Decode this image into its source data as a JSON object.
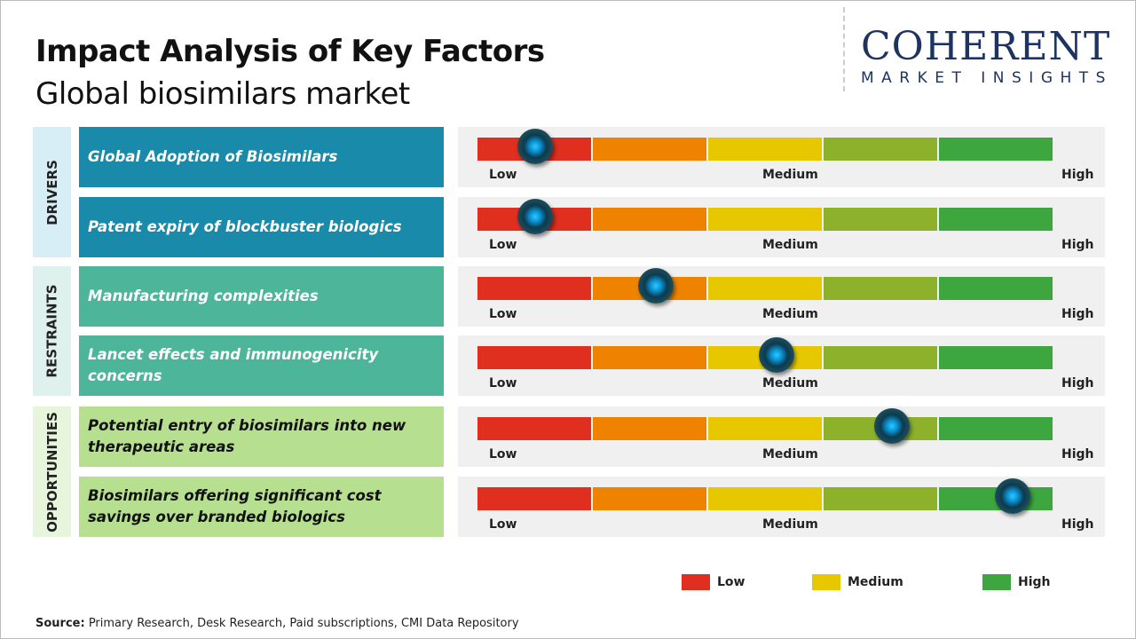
{
  "title": "Impact Analysis of Key Factors",
  "subtitle": "Global biosimilars market",
  "logo": {
    "line1": "COHERENT",
    "line2": "MARKET INSIGHTS"
  },
  "colors": {
    "low": "#e02e1f",
    "low_med": "#ef8300",
    "medium": "#e7c800",
    "med_high": "#8db12b",
    "high": "#3ea63f"
  },
  "chart_data": {
    "type": "gauge",
    "scale_labels": [
      "Low",
      "Medium",
      "High"
    ],
    "categories": [
      {
        "name": "DRIVERS",
        "bg": "#d8eef7",
        "item_color": "#1a8aab",
        "text_color": "#ffffff"
      },
      {
        "name": "RESTRAINTS",
        "bg": "#dff1ec",
        "item_color": "#4db59a",
        "text_color": "#ffffff"
      },
      {
        "name": "OPPORTUNITIES",
        "bg": "#e7f5dc",
        "item_color": "#b6e08f",
        "text_color": "#111111"
      }
    ],
    "factors": [
      {
        "category": 0,
        "label": "Global Adoption of Biosimilars",
        "impact": 0.1
      },
      {
        "category": 0,
        "label": "Patent expiry of blockbuster biologics",
        "impact": 0.1
      },
      {
        "category": 1,
        "label": "Manufacturing  complexities",
        "impact": 0.31
      },
      {
        "category": 1,
        "label": "Lancet effects and immunogenicity  concerns",
        "impact": 0.52
      },
      {
        "category": 2,
        "label": "Potential entry of biosimilars into new therapeutic  areas",
        "impact": 0.72
      },
      {
        "category": 2,
        "label": "Biosimilars offering significant cost savings over branded biologics",
        "impact": 0.93
      }
    ],
    "legend": [
      {
        "label": "Low",
        "color": "#e02e1f"
      },
      {
        "label": "Medium",
        "color": "#e7c800"
      },
      {
        "label": "High",
        "color": "#3ea63f"
      }
    ]
  },
  "source": {
    "label": "Source:",
    "text": " Primary Research, Desk Research, Paid subscriptions, CMI Data Repository"
  }
}
